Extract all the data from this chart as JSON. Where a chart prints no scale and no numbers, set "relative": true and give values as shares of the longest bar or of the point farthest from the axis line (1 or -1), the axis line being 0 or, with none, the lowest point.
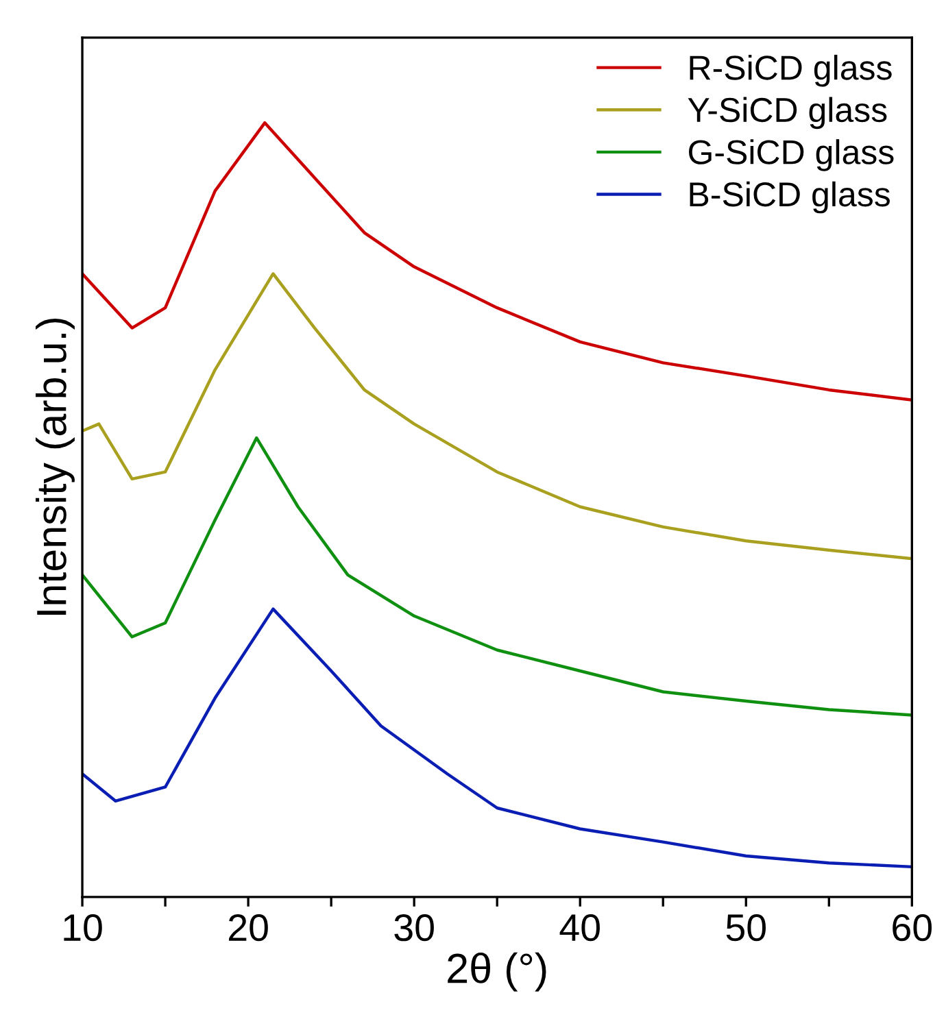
{
  "chart_data": {
    "type": "line",
    "xlabel": "2θ (°)",
    "ylabel": "Intensity (arb.u.)",
    "relative": true,
    "xlim": [
      10,
      60
    ],
    "xticks": [
      10,
      {
        "value": 15,
        "label": null
      },
      20,
      {
        "value": 25,
        "label": null
      },
      30,
      {
        "value": 35,
        "label": null
      },
      40,
      {
        "value": 45,
        "label": null
      },
      50,
      {
        "value": 55,
        "label": null
      },
      60
    ],
    "legend": "top right",
    "grid": false,
    "marker": "none",
    "line_style": "solid",
    "series": [
      {
        "name": "R-SiCD glass",
        "color": "#cc0000",
        "x": [
          10,
          13,
          15,
          18,
          21,
          24,
          27,
          30,
          35,
          40,
          45,
          50,
          55,
          60
        ],
        "values": [
          0.805,
          0.735,
          0.761,
          0.912,
          1.0,
          0.929,
          0.858,
          0.814,
          0.761,
          0.717,
          0.69,
          0.673,
          0.655,
          0.642
        ]
      },
      {
        "name": "Y-SiCD glass",
        "color": "#aaa020",
        "x": [
          10,
          11,
          13,
          15,
          18,
          21.5,
          24,
          27,
          30,
          35,
          40,
          45,
          50,
          55,
          60
        ],
        "values": [
          0.602,
          0.611,
          0.54,
          0.549,
          0.681,
          0.805,
          0.735,
          0.655,
          0.611,
          0.549,
          0.504,
          0.478,
          0.46,
          0.448,
          0.437
        ]
      },
      {
        "name": "G-SiCD glass",
        "color": "#109010",
        "x": [
          10,
          13,
          15,
          18,
          20.5,
          23,
          26,
          30,
          35,
          40,
          45,
          50,
          55,
          60
        ],
        "values": [
          0.416,
          0.336,
          0.354,
          0.487,
          0.593,
          0.504,
          0.416,
          0.363,
          0.319,
          0.292,
          0.265,
          0.253,
          0.242,
          0.235
        ]
      },
      {
        "name": "B-SiCD glass",
        "color": "#0a1eb4",
        "x": [
          10,
          12,
          15,
          18,
          21.5,
          25,
          28,
          32,
          35,
          40,
          45,
          50,
          55,
          60
        ],
        "values": [
          0.159,
          0.124,
          0.142,
          0.257,
          0.372,
          0.292,
          0.221,
          0.159,
          0.115,
          0.088,
          0.071,
          0.053,
          0.044,
          0.039
        ]
      }
    ]
  }
}
